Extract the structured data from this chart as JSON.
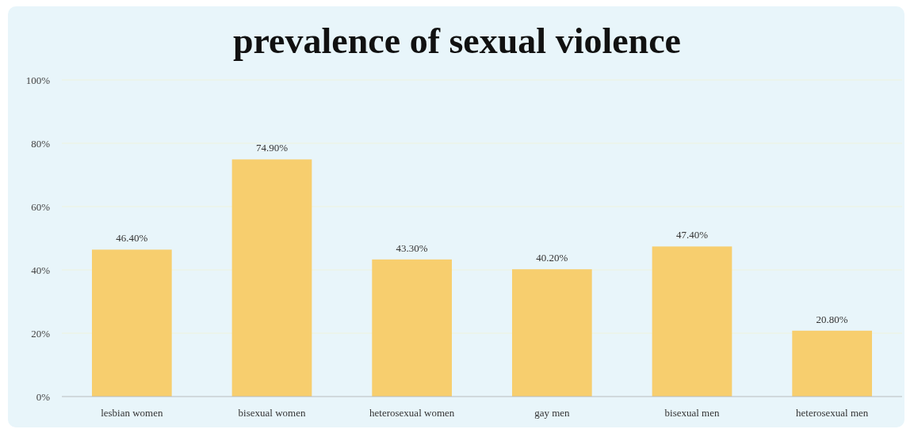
{
  "chart_data": {
    "type": "bar",
    "title": "prevalence of sexual violence",
    "categories": [
      "lesbian women",
      "bisexual women",
      "heterosexual women",
      "gay men",
      "bisexual men",
      "heterosexual men"
    ],
    "values": [
      46.4,
      74.9,
      43.3,
      40.2,
      47.4,
      20.8
    ],
    "value_labels": [
      "46.40%",
      "74.90%",
      "43.30%",
      "40.20%",
      "47.40%",
      "20.80%"
    ],
    "color": "#f7ce6e",
    "ylim": [
      0,
      100
    ],
    "yticks": [
      {
        "value": 0,
        "label": "0%"
      },
      {
        "value": 20,
        "label": "20%"
      },
      {
        "value": 40,
        "label": "40%"
      },
      {
        "value": 60,
        "label": "60%"
      },
      {
        "value": 80,
        "label": "80%"
      },
      {
        "value": 100,
        "label": "100%"
      }
    ],
    "grid": "y"
  }
}
